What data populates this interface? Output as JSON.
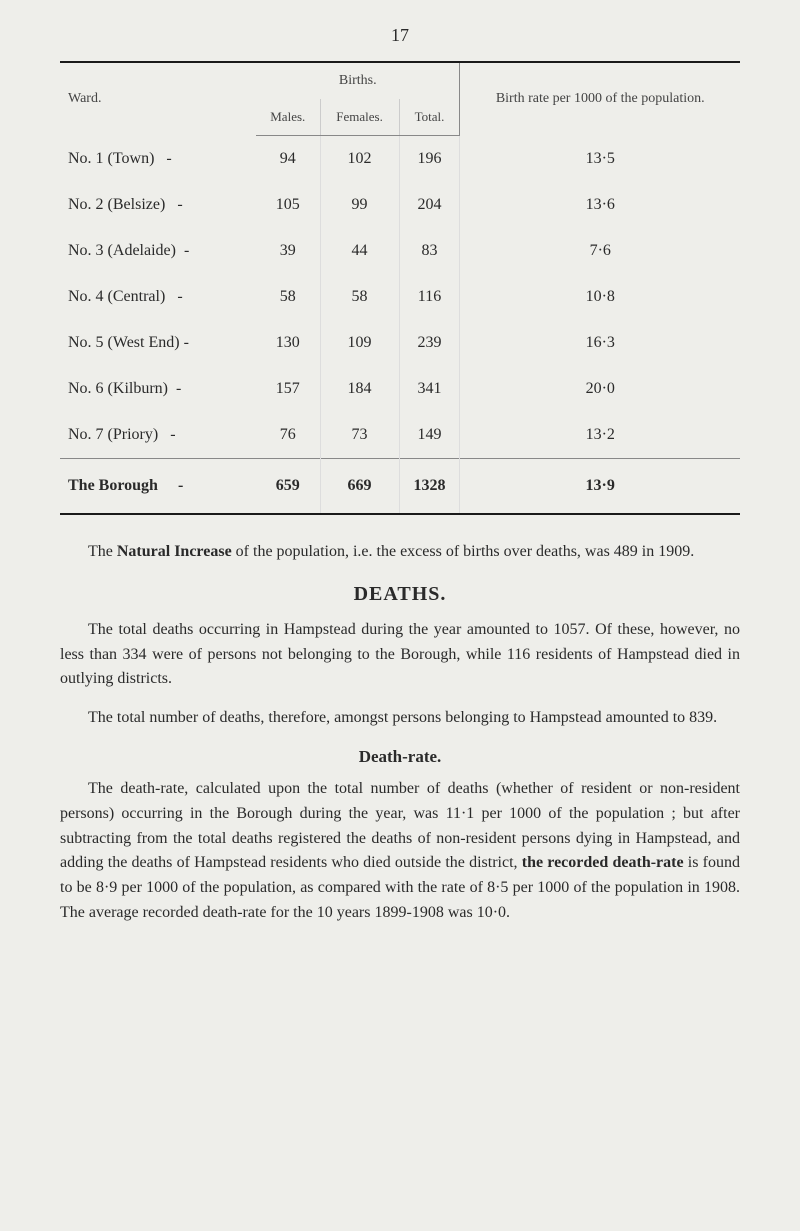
{
  "pageNumber": "17",
  "table": {
    "headers": {
      "ward": "Ward.",
      "birthsGroup": "Births.",
      "males": "Males.",
      "females": "Females.",
      "total": "Total.",
      "rate": "Birth rate per 1000 of the population."
    },
    "rows": [
      {
        "ward": "No. 1 (Town)",
        "males": "94",
        "females": "102",
        "total": "196",
        "rate": "13·5"
      },
      {
        "ward": "No. 2 (Belsize)",
        "males": "105",
        "females": "99",
        "total": "204",
        "rate": "13·6"
      },
      {
        "ward": "No. 3 (Adelaide)",
        "males": "39",
        "females": "44",
        "total": "83",
        "rate": "7·6"
      },
      {
        "ward": "No. 4 (Central)",
        "males": "58",
        "females": "58",
        "total": "116",
        "rate": "10·8"
      },
      {
        "ward": "No. 5 (West End)",
        "males": "130",
        "females": "109",
        "total": "239",
        "rate": "16·3"
      },
      {
        "ward": "No. 6 (Kilburn)",
        "males": "157",
        "females": "184",
        "total": "341",
        "rate": "20·0"
      },
      {
        "ward": "No. 7 (Priory)",
        "males": "76",
        "females": "73",
        "total": "149",
        "rate": "13·2"
      }
    ],
    "totalRow": {
      "ward": "The Borough",
      "males": "659",
      "females": "669",
      "total": "1328",
      "rate": "13·9"
    }
  },
  "paragraphs": {
    "naturalIncrease_pre": "The ",
    "naturalIncrease_bold": "Natural Increase",
    "naturalIncrease_post": " of the population, i.e. the excess of births over deaths, was 489 in 1909.",
    "deathsHeading": "DEATHS.",
    "deaths_p1": "The total deaths occurring in Hampstead during the year amounted to 1057. Of these, however, no less than 334 were of persons not belonging to the Borough, while 116 residents of Hampstead died in outlying districts.",
    "deaths_p2": "The total number of deaths, therefore, amongst persons belonging to Hampstead amounted to 839.",
    "deathRateHeading": "Death-rate.",
    "deathRate_p1_pre": "The death-rate, calculated upon the total number of deaths (whether of resident or non-resident persons) occurring in the Borough during the year, was 11·1 per 1000 of the population ; but after subtracting from the total deaths registered the deaths of non-resident persons dying in Hampstead, and adding the deaths of Hampstead residents who died outside the district, ",
    "deathRate_p1_bold": "the recorded death-rate",
    "deathRate_p1_post": " is found to be 8·9 per 1000 of the population, as compared with the rate of 8·5 per 1000 of the population in 1908. The average recorded death-rate for the 10 years 1899-1908 was 10·0."
  },
  "style": {
    "background_color": "#eeeeea",
    "text_color": "#2a2a2a",
    "border_color": "#1a1a1a",
    "inner_border_color": "#888888",
    "font_family": "Georgia, serif",
    "body_fontsize": 16,
    "heading_fontsize": 20,
    "subheading_fontsize": 17,
    "table_header_fontsize": 14,
    "table_cell_fontsize": 16
  }
}
